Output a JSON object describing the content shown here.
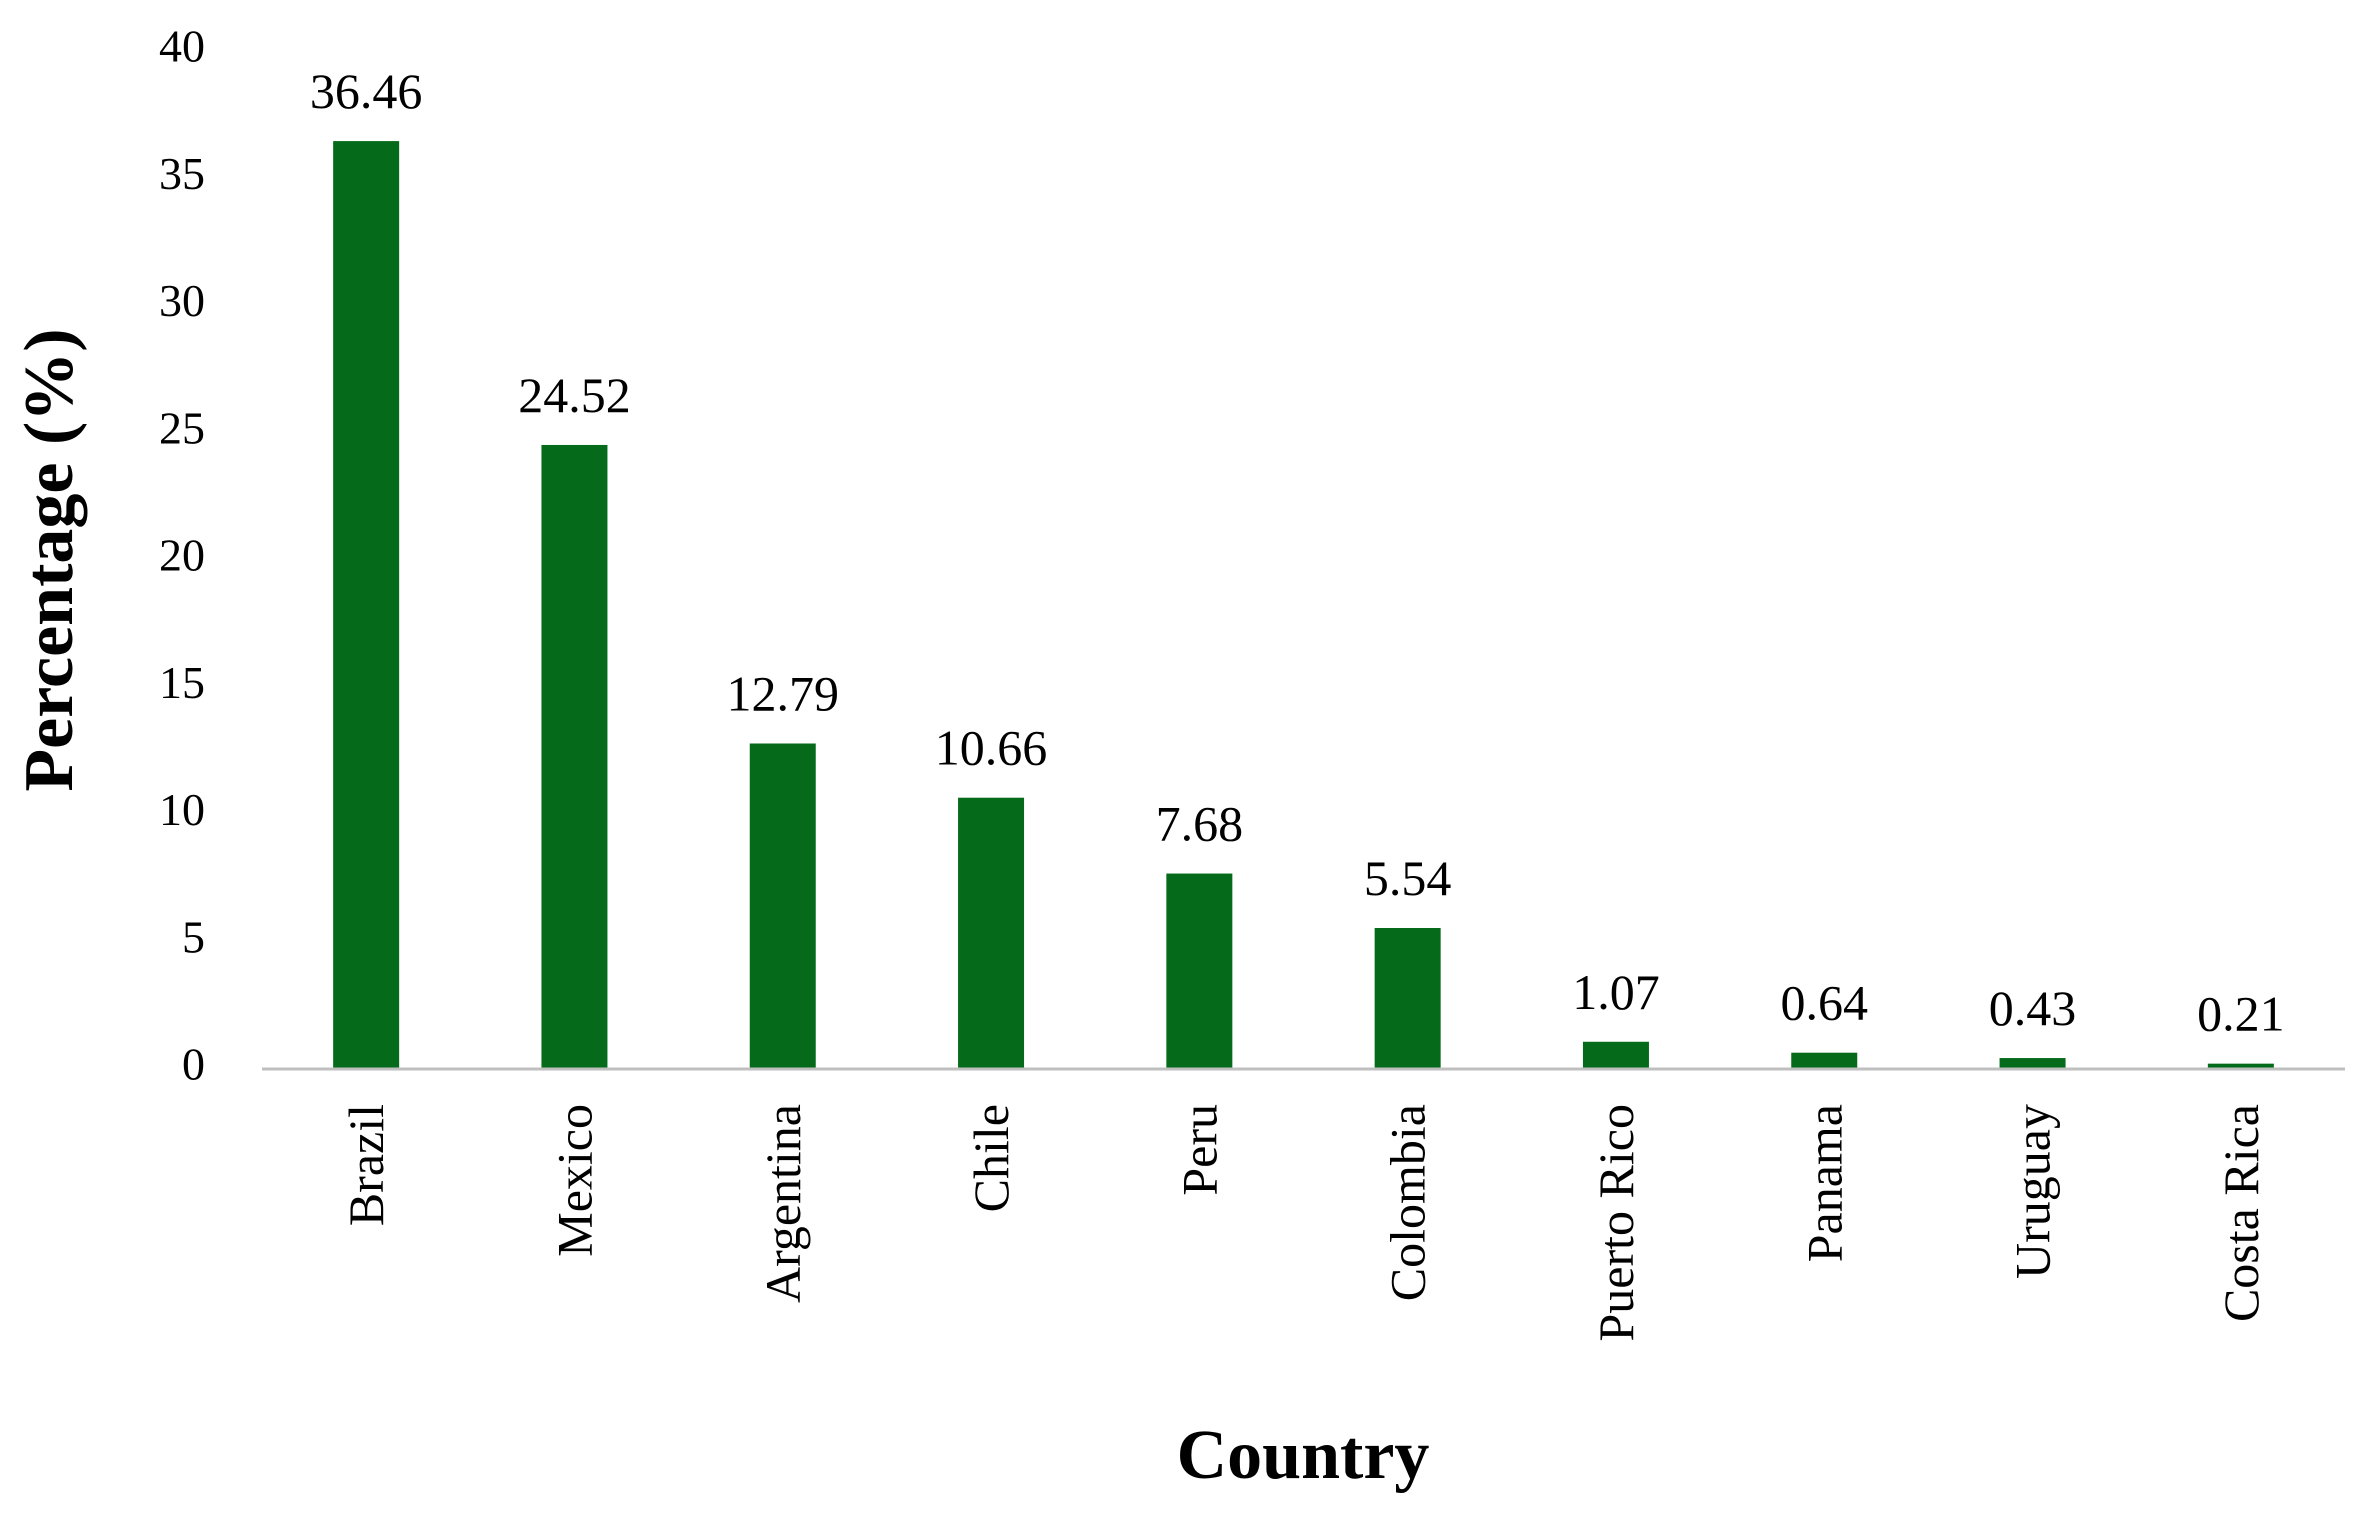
{
  "chart_data": {
    "type": "bar",
    "title": "",
    "xlabel": "Country",
    "ylabel": "Percentage (%)",
    "categories": [
      "Brazil",
      "Mexico",
      "Argentina",
      "Chile",
      "Peru",
      "Colombia",
      "Puerto Rico",
      "Panama",
      "Uruguay",
      "Costa Rica"
    ],
    "values": [
      36.46,
      24.52,
      12.79,
      10.66,
      7.68,
      5.54,
      1.07,
      0.64,
      0.43,
      0.21
    ],
    "data_labels": [
      "36.46",
      "24.52",
      "12.79",
      "10.66",
      "7.68",
      "5.54",
      "1.07",
      "0.64",
      "0.43",
      "0.21"
    ],
    "yticks": [
      0,
      5,
      10,
      15,
      20,
      25,
      30,
      35,
      40
    ],
    "ylim": [
      0,
      40
    ],
    "grid": false,
    "legend": "none",
    "bar_color": "#056B1A",
    "axis_color": "#BFBFBF"
  }
}
